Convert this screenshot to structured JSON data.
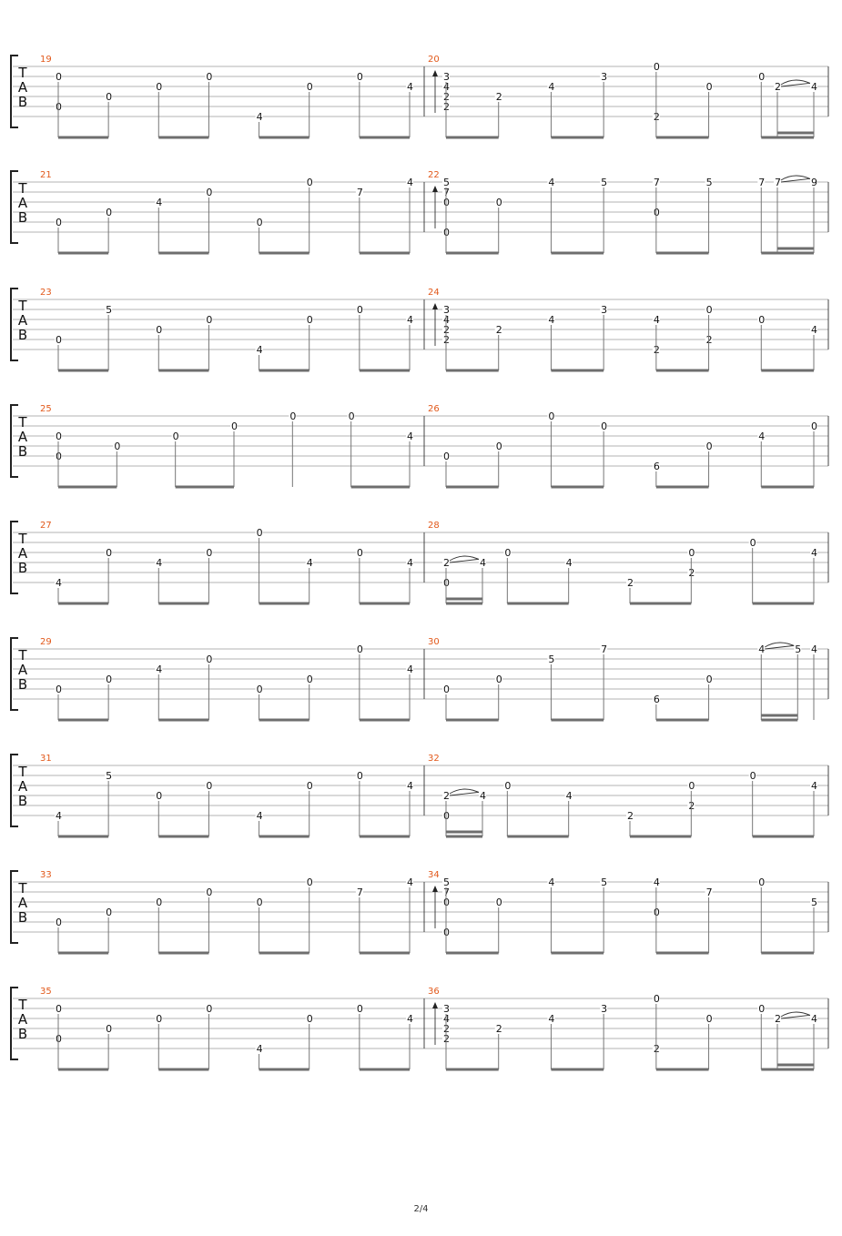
{
  "clef_letters": [
    "T",
    "A",
    "B"
  ],
  "page_number": "2/4",
  "measures": [
    {
      "number": "19",
      "events": [
        {
          "n": [
            [
              1,
              "0"
            ],
            [
              4,
              "0"
            ]
          ]
        },
        {
          "n": [
            [
              3,
              "0"
            ]
          ]
        },
        {
          "n": [
            [
              2,
              "0"
            ]
          ]
        },
        {
          "n": [
            [
              1,
              "0"
            ]
          ]
        },
        {
          "n": [
            [
              5,
              "4"
            ]
          ]
        },
        {
          "n": [
            [
              2,
              "0"
            ]
          ]
        },
        {
          "n": [
            [
              1,
              "0"
            ]
          ]
        },
        {
          "n": [
            [
              2,
              "4"
            ]
          ]
        }
      ]
    },
    {
      "number": "20",
      "events": [
        {
          "n": [
            [
              1,
              "3"
            ],
            [
              2,
              "4"
            ],
            [
              3,
              "2"
            ],
            [
              4,
              "2"
            ]
          ],
          "arrow": true
        },
        {
          "n": [
            [
              3,
              "2"
            ]
          ]
        },
        {
          "n": [
            [
              2,
              "4"
            ]
          ]
        },
        {
          "n": [
            [
              1,
              "3"
            ]
          ]
        },
        {
          "n": [
            [
              0,
              "0"
            ],
            [
              5,
              "2"
            ]
          ]
        },
        {
          "n": [
            [
              2,
              "0"
            ]
          ]
        },
        {
          "n": [
            [
              1,
              "0"
            ]
          ]
        },
        {
          "n": [
            [
              2,
              "2"
            ]
          ],
          "slur": true
        },
        {
          "n": [
            [
              2,
              "4"
            ]
          ]
        }
      ]
    },
    {
      "number": "21",
      "events": [
        {
          "n": [
            [
              4,
              "0"
            ]
          ]
        },
        {
          "n": [
            [
              3,
              "0"
            ]
          ]
        },
        {
          "n": [
            [
              2,
              "4"
            ]
          ]
        },
        {
          "n": [
            [
              1,
              "0"
            ]
          ]
        },
        {
          "n": [
            [
              4,
              "0"
            ]
          ]
        },
        {
          "n": [
            [
              0,
              "0"
            ]
          ]
        },
        {
          "n": [
            [
              1,
              "7"
            ]
          ]
        },
        {
          "n": [
            [
              0,
              "4"
            ]
          ]
        }
      ]
    },
    {
      "number": "22",
      "events": [
        {
          "n": [
            [
              0,
              "5"
            ],
            [
              1,
              "7"
            ],
            [
              2,
              "0"
            ],
            [
              5,
              "0"
            ]
          ],
          "arrow": true
        },
        {
          "n": [
            [
              2,
              "0"
            ]
          ]
        },
        {
          "n": [
            [
              0,
              "4"
            ]
          ]
        },
        {
          "n": [
            [
              0,
              "5"
            ]
          ]
        },
        {
          "n": [
            [
              0,
              "7"
            ],
            [
              3,
              "0"
            ]
          ]
        },
        {
          "n": [
            [
              0,
              "5"
            ]
          ]
        },
        {
          "n": [
            [
              0,
              "7"
            ]
          ]
        },
        {
          "n": [
            [
              0,
              "7"
            ]
          ],
          "slur": true
        },
        {
          "n": [
            [
              0,
              "9"
            ]
          ]
        }
      ]
    },
    {
      "number": "23",
      "events": [
        {
          "n": [
            [
              4,
              "0"
            ]
          ]
        },
        {
          "n": [
            [
              1,
              "5"
            ]
          ]
        },
        {
          "n": [
            [
              3,
              "0"
            ]
          ]
        },
        {
          "n": [
            [
              2,
              "0"
            ]
          ]
        },
        {
          "n": [
            [
              5,
              "4"
            ]
          ]
        },
        {
          "n": [
            [
              2,
              "0"
            ]
          ]
        },
        {
          "n": [
            [
              1,
              "0"
            ]
          ]
        },
        {
          "n": [
            [
              2,
              "4"
            ]
          ]
        }
      ]
    },
    {
      "number": "24",
      "events": [
        {
          "n": [
            [
              1,
              "3"
            ],
            [
              2,
              "4"
            ],
            [
              3,
              "2"
            ],
            [
              4,
              "2"
            ]
          ],
          "arrow": true
        },
        {
          "n": [
            [
              3,
              "2"
            ]
          ]
        },
        {
          "n": [
            [
              2,
              "4"
            ]
          ]
        },
        {
          "n": [
            [
              1,
              "3"
            ]
          ]
        },
        {
          "n": [
            [
              2,
              "4"
            ],
            [
              5,
              "2"
            ]
          ]
        },
        {
          "n": [
            [
              1,
              "0"
            ],
            [
              4,
              "2"
            ]
          ]
        },
        {
          "n": [
            [
              2,
              "0"
            ]
          ]
        },
        {
          "n": [
            [
              3,
              "4"
            ]
          ]
        }
      ]
    },
    {
      "number": "25",
      "events": [
        {
          "n": [
            [
              2,
              "0"
            ],
            [
              4,
              "0"
            ]
          ]
        },
        {
          "n": [
            [
              3,
              "0"
            ]
          ]
        },
        {
          "n": [
            [
              2,
              "0"
            ]
          ]
        },
        {
          "n": [
            [
              1,
              "0"
            ]
          ]
        },
        {
          "n": [
            [
              0,
              "0"
            ]
          ],
          "single": true
        },
        {
          "n": [
            [
              0,
              "0"
            ]
          ]
        },
        {
          "n": [
            [
              2,
              "4"
            ]
          ]
        }
      ]
    },
    {
      "number": "26",
      "events": [
        {
          "n": [
            [
              4,
              "0"
            ]
          ]
        },
        {
          "n": [
            [
              3,
              "0"
            ]
          ]
        },
        {
          "n": [
            [
              0,
              "0"
            ]
          ]
        },
        {
          "n": [
            [
              1,
              "0"
            ]
          ]
        },
        {
          "n": [
            [
              5,
              "6"
            ]
          ]
        },
        {
          "n": [
            [
              3,
              "0"
            ]
          ]
        },
        {
          "n": [
            [
              2,
              "4"
            ]
          ]
        },
        {
          "n": [
            [
              1,
              "0"
            ]
          ]
        }
      ]
    },
    {
      "number": "27",
      "events": [
        {
          "n": [
            [
              5,
              "4"
            ]
          ]
        },
        {
          "n": [
            [
              2,
              "0"
            ]
          ]
        },
        {
          "n": [
            [
              3,
              "4"
            ]
          ]
        },
        {
          "n": [
            [
              2,
              "0"
            ]
          ]
        },
        {
          "n": [
            [
              0,
              "0"
            ]
          ]
        },
        {
          "n": [
            [
              3,
              "4"
            ]
          ]
        },
        {
          "n": [
            [
              2,
              "0"
            ]
          ]
        },
        {
          "n": [
            [
              3,
              "4"
            ]
          ]
        }
      ]
    },
    {
      "number": "28",
      "events": [
        {
          "n": [
            [
              3,
              "2"
            ],
            [
              5,
              "0"
            ]
          ],
          "slur": true
        },
        {
          "n": [
            [
              3,
              "4"
            ]
          ]
        },
        {
          "n": [
            [
              2,
              "0"
            ]
          ]
        },
        {
          "n": [
            [
              3,
              "4"
            ]
          ]
        },
        {
          "n": [
            [
              5,
              "2"
            ]
          ]
        },
        {
          "n": [
            [
              2,
              "0"
            ],
            [
              4,
              "2"
            ]
          ]
        },
        {
          "n": [
            [
              1,
              "0"
            ]
          ]
        },
        {
          "n": [
            [
              2,
              "4"
            ]
          ]
        }
      ]
    },
    {
      "number": "29",
      "events": [
        {
          "n": [
            [
              4,
              "0"
            ]
          ]
        },
        {
          "n": [
            [
              3,
              "0"
            ]
          ]
        },
        {
          "n": [
            [
              2,
              "4"
            ]
          ]
        },
        {
          "n": [
            [
              1,
              "0"
            ]
          ]
        },
        {
          "n": [
            [
              4,
              "0"
            ]
          ]
        },
        {
          "n": [
            [
              3,
              "0"
            ]
          ]
        },
        {
          "n": [
            [
              0,
              "0"
            ]
          ]
        },
        {
          "n": [
            [
              2,
              "4"
            ]
          ]
        }
      ]
    },
    {
      "number": "30",
      "events": [
        {
          "n": [
            [
              4,
              "0"
            ]
          ]
        },
        {
          "n": [
            [
              3,
              "0"
            ]
          ]
        },
        {
          "n": [
            [
              1,
              "5"
            ]
          ]
        },
        {
          "n": [
            [
              0,
              "7"
            ]
          ]
        },
        {
          "n": [
            [
              5,
              "6"
            ]
          ]
        },
        {
          "n": [
            [
              3,
              "0"
            ]
          ]
        },
        {
          "n": [
            [
              0,
              "4"
            ]
          ],
          "slur": true
        },
        {
          "n": [
            [
              0,
              "5"
            ]
          ]
        },
        {
          "n": [
            [
              0,
              "4"
            ]
          ]
        }
      ]
    },
    {
      "number": "31",
      "events": [
        {
          "n": [
            [
              5,
              "4"
            ]
          ]
        },
        {
          "n": [
            [
              1,
              "5"
            ]
          ]
        },
        {
          "n": [
            [
              3,
              "0"
            ]
          ]
        },
        {
          "n": [
            [
              2,
              "0"
            ]
          ]
        },
        {
          "n": [
            [
              5,
              "4"
            ]
          ]
        },
        {
          "n": [
            [
              2,
              "0"
            ]
          ]
        },
        {
          "n": [
            [
              1,
              "0"
            ]
          ]
        },
        {
          "n": [
            [
              2,
              "4"
            ]
          ]
        }
      ]
    },
    {
      "number": "32",
      "events": [
        {
          "n": [
            [
              3,
              "2"
            ],
            [
              5,
              "0"
            ]
          ],
          "slur": true
        },
        {
          "n": [
            [
              3,
              "4"
            ]
          ]
        },
        {
          "n": [
            [
              2,
              "0"
            ]
          ]
        },
        {
          "n": [
            [
              3,
              "4"
            ]
          ]
        },
        {
          "n": [
            [
              5,
              "2"
            ]
          ]
        },
        {
          "n": [
            [
              2,
              "0"
            ],
            [
              4,
              "2"
            ]
          ]
        },
        {
          "n": [
            [
              1,
              "0"
            ]
          ]
        },
        {
          "n": [
            [
              2,
              "4"
            ]
          ]
        }
      ]
    },
    {
      "number": "33",
      "events": [
        {
          "n": [
            [
              4,
              "0"
            ]
          ]
        },
        {
          "n": [
            [
              3,
              "0"
            ]
          ]
        },
        {
          "n": [
            [
              2,
              "0"
            ]
          ]
        },
        {
          "n": [
            [
              1,
              "0"
            ]
          ]
        },
        {
          "n": [
            [
              2,
              "0"
            ]
          ]
        },
        {
          "n": [
            [
              0,
              "0"
            ]
          ]
        },
        {
          "n": [
            [
              1,
              "7"
            ]
          ]
        },
        {
          "n": [
            [
              0,
              "4"
            ]
          ]
        }
      ]
    },
    {
      "number": "34",
      "events": [
        {
          "n": [
            [
              0,
              "5"
            ],
            [
              1,
              "7"
            ],
            [
              2,
              "0"
            ],
            [
              5,
              "0"
            ]
          ],
          "arrow": true
        },
        {
          "n": [
            [
              2,
              "0"
            ]
          ]
        },
        {
          "n": [
            [
              0,
              "4"
            ]
          ]
        },
        {
          "n": [
            [
              0,
              "5"
            ]
          ]
        },
        {
          "n": [
            [
              0,
              "4"
            ],
            [
              3,
              "0"
            ]
          ]
        },
        {
          "n": [
            [
              1,
              "7"
            ]
          ]
        },
        {
          "n": [
            [
              0,
              "0"
            ]
          ]
        },
        {
          "n": [
            [
              2,
              "5"
            ]
          ]
        }
      ]
    },
    {
      "number": "35",
      "events": [
        {
          "n": [
            [
              1,
              "0"
            ],
            [
              4,
              "0"
            ]
          ]
        },
        {
          "n": [
            [
              3,
              "0"
            ]
          ]
        },
        {
          "n": [
            [
              2,
              "0"
            ]
          ]
        },
        {
          "n": [
            [
              1,
              "0"
            ]
          ]
        },
        {
          "n": [
            [
              5,
              "4"
            ]
          ]
        },
        {
          "n": [
            [
              2,
              "0"
            ]
          ]
        },
        {
          "n": [
            [
              1,
              "0"
            ]
          ]
        },
        {
          "n": [
            [
              2,
              "4"
            ]
          ]
        }
      ]
    },
    {
      "number": "36",
      "events": [
        {
          "n": [
            [
              1,
              "3"
            ],
            [
              2,
              "4"
            ],
            [
              3,
              "2"
            ],
            [
              4,
              "2"
            ]
          ],
          "arrow": true
        },
        {
          "n": [
            [
              3,
              "2"
            ]
          ]
        },
        {
          "n": [
            [
              2,
              "4"
            ]
          ]
        },
        {
          "n": [
            [
              1,
              "3"
            ]
          ]
        },
        {
          "n": [
            [
              0,
              "0"
            ],
            [
              5,
              "2"
            ]
          ]
        },
        {
          "n": [
            [
              2,
              "0"
            ]
          ]
        },
        {
          "n": [
            [
              1,
              "0"
            ]
          ]
        },
        {
          "n": [
            [
              2,
              "2"
            ]
          ],
          "slur": true
        },
        {
          "n": [
            [
              2,
              "4"
            ]
          ]
        }
      ]
    }
  ]
}
